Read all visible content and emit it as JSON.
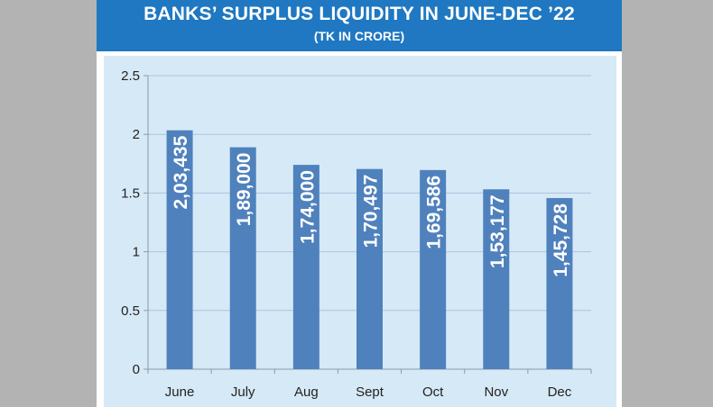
{
  "header": {
    "title": "BANKS’ SURPLUS LIQUIDITY IN JUNE-DEC ’22",
    "subtitle": "(TK IN CRORE)"
  },
  "colors": {
    "header_bg": "#1f78c1",
    "plot_bg": "#d6e9f6",
    "bar": "#4f81bd",
    "grid": "#a9c6e2",
    "page_bg": "#b3b3b3"
  },
  "chart_data": {
    "type": "bar",
    "title": "BANKS’ SURPLUS LIQUIDITY IN JUNE-DEC ’22",
    "subtitle": "(TK IN CRORE)",
    "categories": [
      "June",
      "July",
      "Aug",
      "Sept",
      "Oct",
      "Nov",
      "Dec"
    ],
    "values": [
      2.03435,
      1.89,
      1.74,
      1.70497,
      1.69586,
      1.53177,
      1.45728
    ],
    "data_labels": [
      "2,03,435",
      "1,89,000",
      "1,74,000",
      "1,70,497",
      "1,69,586",
      "1,53,177",
      "1,45,728"
    ],
    "yticks": [
      "0",
      "0.5",
      "1",
      "1.5",
      "2",
      "2.5"
    ],
    "ylim": [
      0,
      2.5
    ],
    "grid": true,
    "legend": "none",
    "xlabel": "",
    "ylabel": ""
  }
}
